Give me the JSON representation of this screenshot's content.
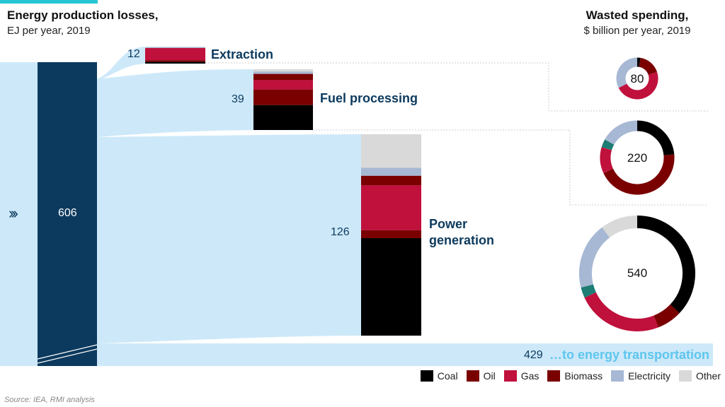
{
  "chart_data": {
    "type": "sankey",
    "title_left": [
      "Energy production losses,",
      "EJ per year, 2019"
    ],
    "title_right": [
      "Wasted spending,",
      "$ billion per year, 2019"
    ],
    "total": {
      "value": 606,
      "label": "606"
    },
    "stages": [
      {
        "name": "Extraction",
        "value": 12,
        "label": "12",
        "breakdown": [
          {
            "category": "Other",
            "value": 0.4
          },
          {
            "category": "Electricity",
            "value": 0.6
          },
          {
            "category": "Gas",
            "value": 8.6
          },
          {
            "category": "Biomass",
            "value": 1.2
          },
          {
            "category": "Coal",
            "value": 1.2
          }
        ],
        "spending": {
          "value": 80,
          "label": "80",
          "slices": [
            {
              "category": "Coal",
              "value": 2
            },
            {
              "category": "Oil",
              "value": 14
            },
            {
              "category": "Gas",
              "value": 38
            },
            {
              "category": "Electricity",
              "value": 26
            }
          ]
        }
      },
      {
        "name": "Fuel processing",
        "value": 39,
        "label": "39",
        "breakdown": [
          {
            "category": "Other",
            "value": 1.5
          },
          {
            "category": "Electricity",
            "value": 1.5
          },
          {
            "category": "Biomass",
            "value": 4
          },
          {
            "category": "Gas",
            "value": 6
          },
          {
            "category": "Oil",
            "value": 10
          },
          {
            "category": "Coal",
            "value": 16
          }
        ],
        "spending": {
          "value": 220,
          "label": "220",
          "slices": [
            {
              "category": "Coal",
              "value": 52
            },
            {
              "category": "Oil",
              "value": 98
            },
            {
              "category": "Gas",
              "value": 25
            },
            {
              "category": "Biomass",
              "value": 8
            },
            {
              "category": "Electricity",
              "value": 37
            }
          ]
        }
      },
      {
        "name": "Power generation",
        "value": 126,
        "label": "126",
        "breakdown": [
          {
            "category": "Other",
            "value": 21
          },
          {
            "category": "Electricity",
            "value": 5
          },
          {
            "category": "Oil",
            "value": 6
          },
          {
            "category": "Gas",
            "value": 28
          },
          {
            "category": "Biomass",
            "value": 5
          },
          {
            "category": "Coal",
            "value": 61
          }
        ],
        "spending": {
          "value": 540,
          "label": "540",
          "slices": [
            {
              "category": "Coal",
              "value": 200
            },
            {
              "category": "Oil",
              "value": 38
            },
            {
              "category": "Gas",
              "value": 130
            },
            {
              "category": "Biomass",
              "value": 16
            },
            {
              "category": "Electricity",
              "value": 100
            },
            {
              "category": "Other",
              "value": 56
            }
          ]
        }
      }
    ],
    "transport": {
      "value": 429,
      "label": "429",
      "name": "…to energy transportation"
    },
    "legend": [
      "Coal",
      "Oil",
      "Gas",
      "Biomass",
      "Electricity",
      "Other"
    ],
    "colors": {
      "Coal": "#000000",
      "Oil": "#7a0000",
      "Gas": "#c0103c",
      "Biomass": "#7a0000",
      "Electricity": "#a7b8d4",
      "Other": "#d9d9d9",
      "Teal": "#1d7d74",
      "flow": "#cde9f9",
      "total_bar": "#0c3a5e"
    },
    "source": "Source: IEA, RMI analysis"
  }
}
